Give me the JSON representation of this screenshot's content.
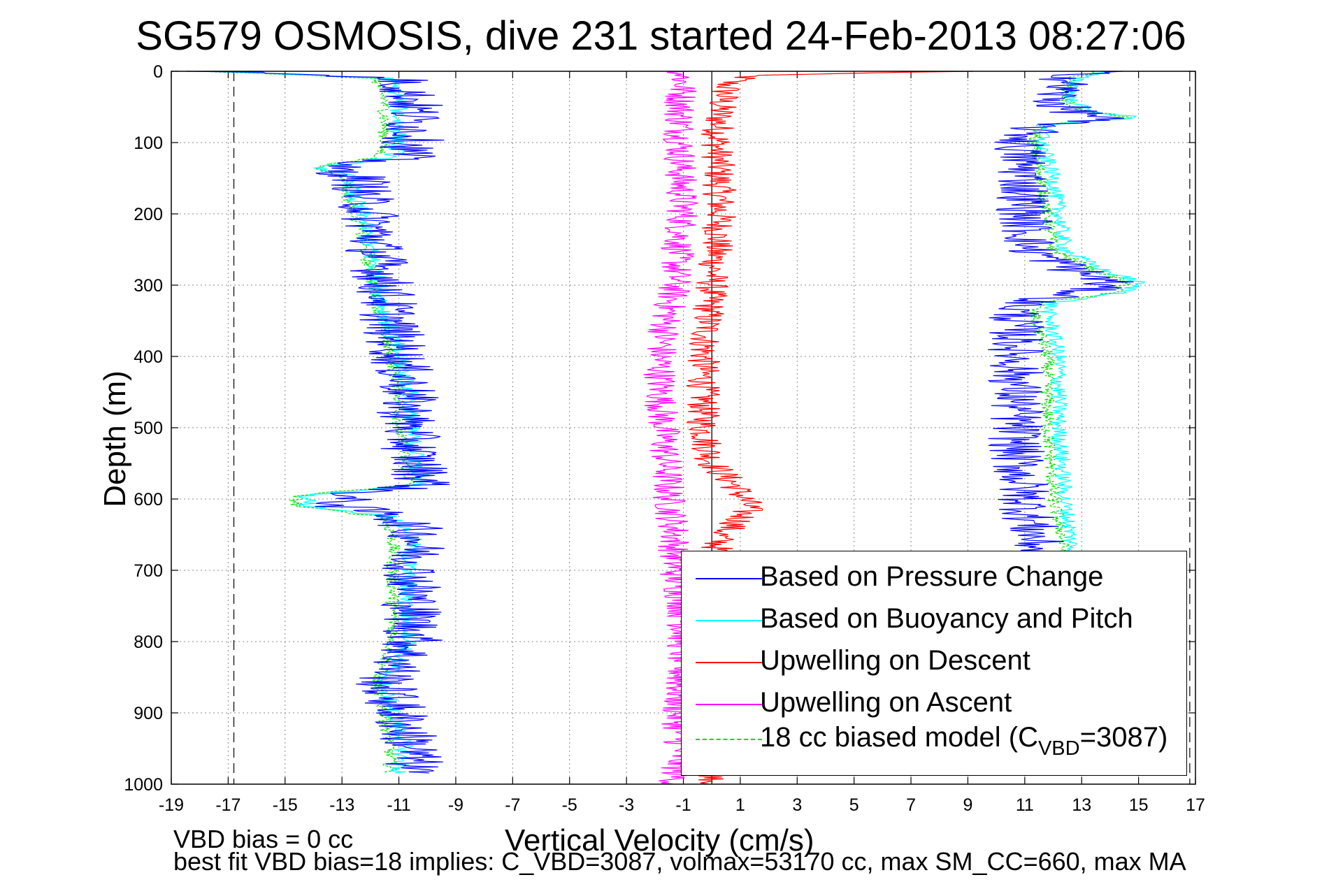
{
  "chart_data": {
    "type": "line",
    "title": "SG579 OSMOSIS, dive 231 started 24-Feb-2013 08:27:06",
    "xlabel": "Vertical Velocity (cm/s)",
    "ylabel": "Depth (m)",
    "xlim": [
      -19,
      17
    ],
    "ylim": [
      1000,
      0
    ],
    "y_reversed": true,
    "grid": true,
    "legend_position": "bottom-right",
    "xticks": [
      "-19",
      "-17",
      "-15",
      "-13",
      "-11",
      "-9",
      "-7",
      "-5",
      "-3",
      "-1",
      "1",
      "3",
      "5",
      "7",
      "9",
      "11",
      "13",
      "15",
      "17"
    ],
    "yticks": [
      "0",
      "100",
      "200",
      "300",
      "400",
      "500",
      "600",
      "700",
      "800",
      "900",
      "1000"
    ],
    "reference_lines": {
      "dashed_x": [
        -16.8,
        16.8
      ],
      "solid_x": [
        0
      ]
    },
    "legend": {
      "pressure": "Based on Pressure Change",
      "buoyancy": "Based on Buoyancy and Pitch",
      "upwelling_descent": "Upwelling on Descent",
      "upwelling_ascent": "Upwelling on Ascent",
      "model_prefix": "18 cc biased model (C",
      "model_sub": "VBD",
      "model_suffix": "=3087)"
    },
    "colors": {
      "pressure": "#0000ff",
      "buoyancy": "#00ffff",
      "upwelling_descent": "#ff0000",
      "upwelling_ascent": "#ff00ff",
      "model": "#00dd00"
    },
    "series": [
      {
        "name": "Based on Pressure Change",
        "phase": "descent",
        "depth": [
          0,
          10,
          40,
          70,
          100,
          120,
          135,
          150,
          175,
          200,
          250,
          300,
          350,
          400,
          450,
          500,
          540,
          580,
          595,
          610,
          625,
          650,
          700,
          750,
          800,
          860,
          900,
          950,
          985
        ],
        "velocity": [
          -17.5,
          -11,
          -10.5,
          -10.5,
          -10.5,
          -10.8,
          -13.5,
          -12.3,
          -12.3,
          -12,
          -11.8,
          -11.5,
          -11.3,
          -11,
          -10.7,
          -10.7,
          -10.5,
          -10,
          -13,
          -13,
          -11,
          -10.3,
          -10.5,
          -10.5,
          -10.5,
          -11.5,
          -11,
          -10.5,
          -10.5
        ],
        "noise": 1.1
      },
      {
        "name": "Based on Buoyancy and Pitch",
        "phase": "descent",
        "depth": [
          0,
          10,
          40,
          70,
          100,
          120,
          135,
          150,
          175,
          200,
          250,
          300,
          350,
          400,
          450,
          500,
          540,
          580,
          595,
          610,
          625,
          650,
          700,
          750,
          800,
          860,
          900,
          950,
          985
        ],
        "velocity": [
          -17.5,
          -11.3,
          -11,
          -11,
          -11,
          -11.2,
          -13.8,
          -12.6,
          -12.6,
          -12.3,
          -12,
          -11.7,
          -11.4,
          -11,
          -10.6,
          -10.6,
          -10.4,
          -10.2,
          -14.2,
          -14.2,
          -11.2,
          -10.5,
          -10.7,
          -10.7,
          -10.6,
          -11.6,
          -11.2,
          -10.8,
          -11
        ],
        "noise": 0.35
      },
      {
        "name": "18 cc biased model",
        "phase": "descent",
        "depth": [
          0,
          10,
          40,
          70,
          100,
          120,
          135,
          150,
          175,
          200,
          250,
          300,
          350,
          400,
          450,
          500,
          540,
          580,
          595,
          610,
          625,
          650,
          700,
          750,
          800,
          860,
          900,
          950,
          985
        ],
        "velocity": [
          -17.8,
          -11.8,
          -11.5,
          -11.5,
          -11.5,
          -11.7,
          -14,
          -12.8,
          -12.8,
          -12.5,
          -12.2,
          -11.9,
          -11.6,
          -11.3,
          -11,
          -11,
          -10.8,
          -10.6,
          -14.6,
          -14.6,
          -11.6,
          -11.2,
          -11.2,
          -11.2,
          -11.2,
          -11.8,
          -11.5,
          -11.3,
          -11.3
        ],
        "noise": 0.25
      },
      {
        "name": "Based on Pressure Change",
        "phase": "ascent",
        "depth": [
          0,
          10,
          40,
          55,
          65,
          75,
          100,
          150,
          200,
          250,
          280,
          295,
          310,
          325,
          335,
          400,
          500,
          540,
          600,
          650,
          680
        ],
        "velocity": [
          13.5,
          12.5,
          12,
          12.5,
          14,
          11.5,
          10.8,
          11,
          11,
          11.2,
          12.8,
          14,
          13,
          11,
          10.7,
          10.7,
          10.7,
          10.7,
          11,
          11.3,
          11.5
        ],
        "noise": 1.0
      },
      {
        "name": "Based on Buoyancy and Pitch",
        "phase": "ascent",
        "depth": [
          0,
          10,
          40,
          55,
          65,
          75,
          100,
          150,
          200,
          250,
          280,
          295,
          310,
          325,
          335,
          400,
          500,
          540,
          600,
          650,
          680
        ],
        "velocity": [
          13.8,
          12.8,
          12.6,
          13.2,
          15,
          11.8,
          11.6,
          12,
          12.2,
          12.4,
          13.8,
          15,
          14.6,
          12,
          11.8,
          12.2,
          12.2,
          12.3,
          12.4,
          12.6,
          12.7
        ],
        "noise": 0.3
      },
      {
        "name": "18 cc biased model",
        "phase": "ascent",
        "depth": [
          0,
          10,
          40,
          55,
          65,
          75,
          100,
          150,
          200,
          250,
          280,
          295,
          310,
          325,
          335,
          400,
          500,
          540,
          600,
          650,
          680
        ],
        "velocity": [
          13.6,
          12.6,
          12.4,
          13,
          14.8,
          11.6,
          11.3,
          11.6,
          11.8,
          12,
          13.5,
          14.6,
          14.2,
          11.6,
          11.3,
          11.8,
          11.8,
          11.9,
          12,
          12.3,
          12.4
        ],
        "noise": 0.25
      },
      {
        "name": "Upwelling on Descent",
        "depth": [
          0,
          5,
          15,
          50,
          100,
          200,
          300,
          400,
          500,
          550,
          580,
          610,
          630,
          650,
          700,
          800,
          900,
          1000
        ],
        "velocity": [
          9,
          1.5,
          0.6,
          0.3,
          0.2,
          0.3,
          0,
          -0.3,
          -0.3,
          0,
          0.8,
          1.3,
          1,
          0.3,
          0,
          0,
          0,
          0
        ],
        "noise": 0.6
      },
      {
        "name": "Upwelling on Ascent",
        "depth": [
          0,
          50,
          100,
          150,
          200,
          250,
          300,
          350,
          400,
          450,
          500,
          550,
          600,
          650,
          700,
          750,
          800,
          850,
          900,
          950,
          1000
        ],
        "velocity": [
          -1,
          -1.1,
          -1.1,
          -1.1,
          -1,
          -1.2,
          -1.3,
          -1.6,
          -1.8,
          -1.8,
          -1.7,
          -1.6,
          -1.5,
          -1.3,
          -1.3,
          -1,
          -1,
          -1.1,
          -1.2,
          -1.1,
          -1.3
        ],
        "noise": 0.6
      }
    ]
  },
  "legend_text": {
    "pressure": "Based on Pressure Change",
    "buoyancy": "Based on Buoyancy and Pitch",
    "descent": "Upwelling on Descent",
    "ascent": "Upwelling on Ascent",
    "model_prefix": "18 cc biased model (C",
    "model_sub": "VBD",
    "model_suffix": "=3087)"
  },
  "notes": {
    "vbd_bias": "VBD bias = 0 cc",
    "best_fit": "best fit VBD bias=18 implies: C_VBD=3087, volmax=53170 cc, max SM_CC=660, max MA"
  }
}
